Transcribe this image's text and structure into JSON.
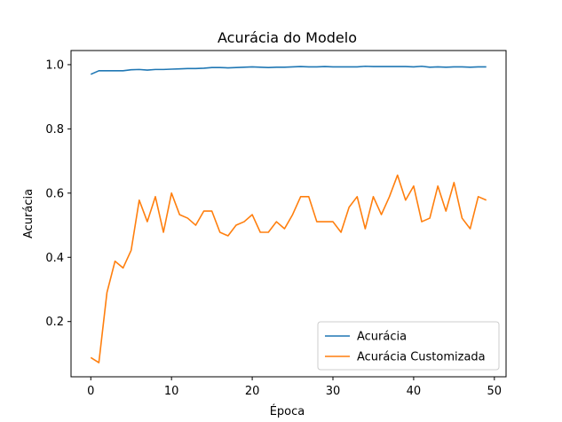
{
  "chart_data": {
    "type": "line",
    "title": "Acurácia do Modelo",
    "xlabel": "Época",
    "ylabel": "Acurácia",
    "xlim": [
      -2.45,
      51.45
    ],
    "ylim": [
      0.028,
      1.044
    ],
    "xticks": [
      0,
      10,
      20,
      30,
      40,
      50
    ],
    "yticks": [
      0.2,
      0.4,
      0.6,
      0.8,
      1.0
    ],
    "grid": false,
    "legend_position": "lower right",
    "x": [
      0,
      1,
      2,
      3,
      4,
      5,
      6,
      7,
      8,
      9,
      10,
      11,
      12,
      13,
      14,
      15,
      16,
      17,
      18,
      19,
      20,
      21,
      22,
      23,
      24,
      25,
      26,
      27,
      28,
      29,
      30,
      31,
      32,
      33,
      34,
      35,
      36,
      37,
      38,
      39,
      40,
      41,
      42,
      43,
      44,
      45,
      46,
      47,
      48,
      49
    ],
    "series": [
      {
        "name": "Acurácia",
        "color": "#1f77b4",
        "values": [
          0.97,
          0.981,
          0.981,
          0.981,
          0.981,
          0.984,
          0.985,
          0.983,
          0.985,
          0.985,
          0.986,
          0.987,
          0.988,
          0.988,
          0.989,
          0.991,
          0.991,
          0.99,
          0.991,
          0.992,
          0.993,
          0.992,
          0.991,
          0.992,
          0.992,
          0.993,
          0.994,
          0.993,
          0.993,
          0.994,
          0.993,
          0.993,
          0.993,
          0.993,
          0.995,
          0.994,
          0.994,
          0.994,
          0.994,
          0.994,
          0.993,
          0.995,
          0.992,
          0.993,
          0.992,
          0.993,
          0.993,
          0.992,
          0.993,
          0.993
        ]
      },
      {
        "name": "Acurácia Customizada",
        "color": "#ff7f0e",
        "values": [
          0.088,
          0.072,
          0.29,
          0.388,
          0.367,
          0.422,
          0.578,
          0.511,
          0.589,
          0.478,
          0.6,
          0.533,
          0.522,
          0.5,
          0.544,
          0.544,
          0.478,
          0.467,
          0.5,
          0.511,
          0.533,
          0.478,
          0.478,
          0.511,
          0.489,
          0.533,
          0.589,
          0.589,
          0.511,
          0.511,
          0.511,
          0.478,
          0.556,
          0.589,
          0.489,
          0.589,
          0.533,
          0.589,
          0.656,
          0.578,
          0.622,
          0.511,
          0.522,
          0.622,
          0.544,
          0.633,
          0.522,
          0.489,
          0.589,
          0.578
        ]
      }
    ]
  }
}
